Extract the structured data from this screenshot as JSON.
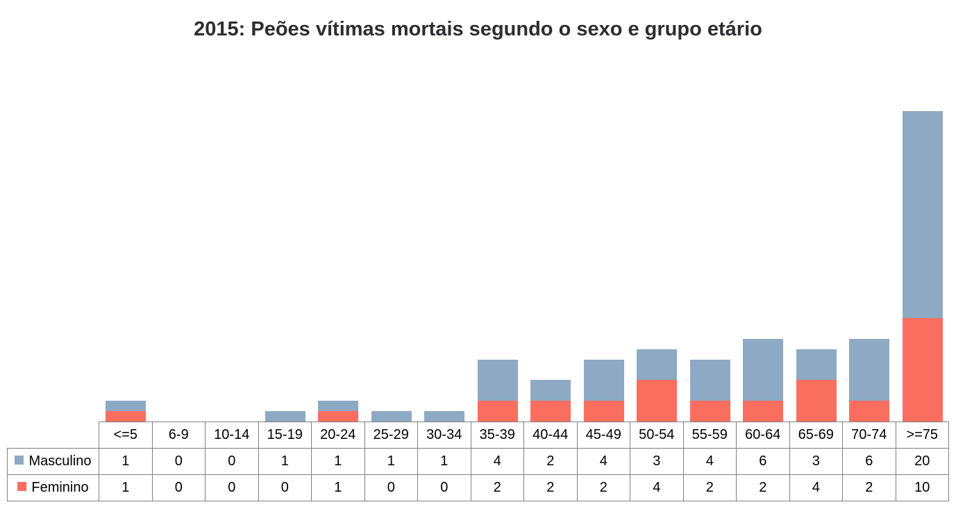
{
  "title": "2015: Peões vítimas mortais segundo o sexo e grupo etário",
  "chart_data": {
    "type": "bar",
    "stacked": true,
    "title": "2015: Peões vítimas mortais segundo o sexo e grupo etário",
    "categories": [
      "<=5",
      "6-9",
      "10-14",
      "15-19",
      "20-24",
      "25-29",
      "30-34",
      "35-39",
      "40-44",
      "45-49",
      "50-54",
      "55-59",
      "60-64",
      "65-69",
      "70-74",
      ">=75"
    ],
    "series": [
      {
        "name": "Masculino",
        "color": "#8ea9c4",
        "values": [
          1,
          0,
          0,
          1,
          1,
          1,
          1,
          4,
          2,
          4,
          3,
          4,
          6,
          3,
          6,
          20
        ]
      },
      {
        "name": "Feminino",
        "color": "#fa6e5f",
        "values": [
          1,
          0,
          0,
          0,
          1,
          0,
          0,
          2,
          2,
          2,
          4,
          2,
          2,
          4,
          2,
          10
        ]
      }
    ],
    "ylim": [
      0,
      30
    ],
    "grid": false,
    "legend_position": "table-left",
    "xlabel": "",
    "ylabel": ""
  },
  "colors": {
    "masculino": "#8ea9c4",
    "feminino": "#fa6e5f",
    "table_border": "#7f7f7f",
    "title_text": "#2d2d31"
  }
}
